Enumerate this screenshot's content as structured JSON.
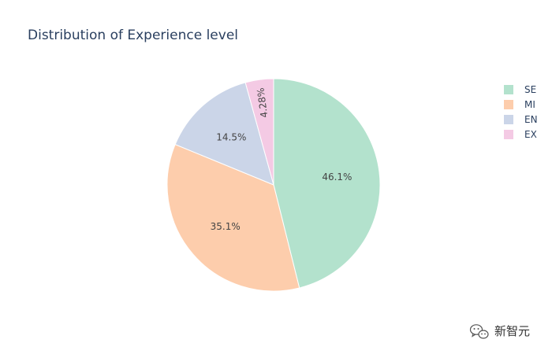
{
  "chart_data": {
    "type": "pie",
    "title": "Distribution of Experience level",
    "categories": [
      "SE",
      "MI",
      "EN",
      "EX"
    ],
    "values": [
      46.1,
      35.1,
      14.5,
      4.28
    ],
    "value_labels": [
      "46.1%",
      "35.1%",
      "14.5%",
      "4.28%"
    ],
    "colors": [
      "#b3e2cd",
      "#fdcdac",
      "#cbd5e8",
      "#f4cae4"
    ],
    "legend_position": "top-right",
    "direction": "clockwise",
    "start": "top"
  },
  "watermark": {
    "text": "新智元",
    "icon": "wechat-logo-icon"
  }
}
